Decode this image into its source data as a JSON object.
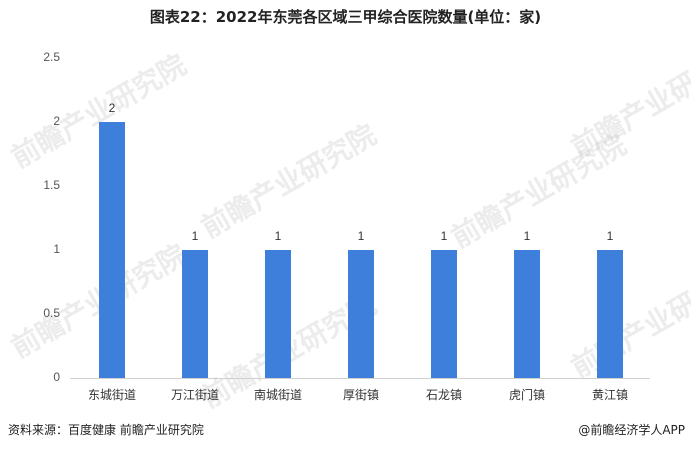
{
  "title": "图表22：2022年东莞各区域三甲综合医院数量(单位：家)",
  "chart_data": {
    "type": "bar",
    "title": "图表22：2022年东莞各区域三甲综合医院数量(单位：家)",
    "categories": [
      "东城街道",
      "万江街道",
      "南城街道",
      "厚街镇",
      "石龙镇",
      "虎门镇",
      "黄江镇"
    ],
    "values": [
      2,
      1,
      1,
      1,
      1,
      1,
      1
    ],
    "data_labels": [
      "2",
      "1",
      "1",
      "1",
      "1",
      "1",
      "1"
    ],
    "xlabel": "",
    "ylabel": "",
    "ylim": [
      0,
      2.5
    ],
    "yticks": [
      "0",
      "0.5",
      "1",
      "1.5",
      "2",
      "2.5"
    ],
    "grid": false,
    "legend": null,
    "bar_color": "#3f7fdc"
  },
  "footer": {
    "source": "资料来源：百度健康 前瞻产业研究院",
    "credit": "@前瞻经济学人APP"
  },
  "watermark": "前瞻产业研究院"
}
